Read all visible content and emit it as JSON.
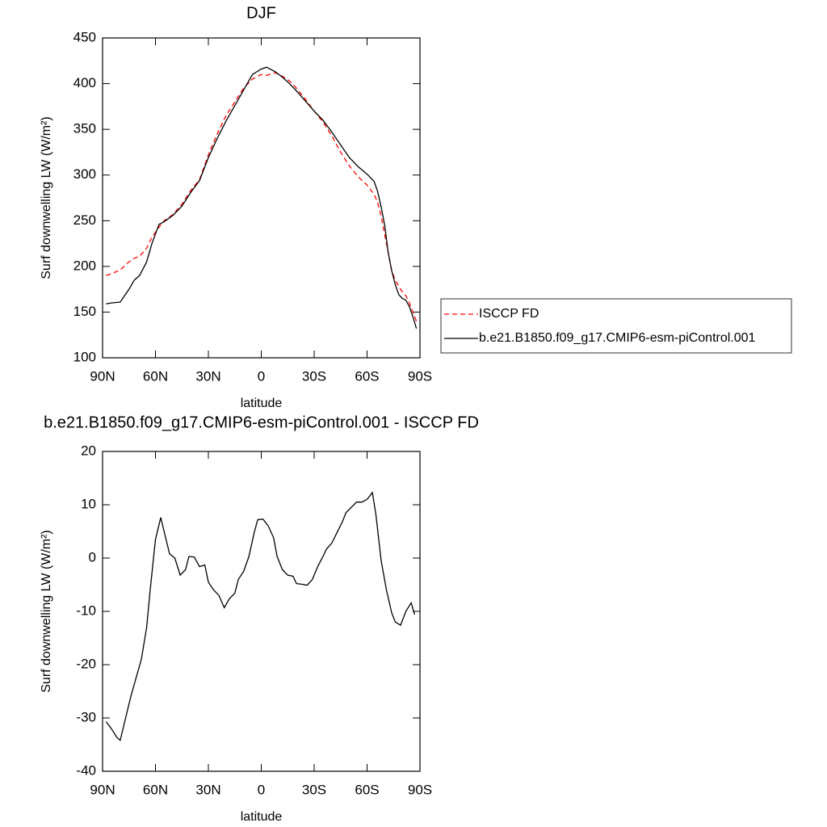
{
  "chart_data": [
    {
      "type": "line",
      "title": "DJF",
      "xlabel": "latitude",
      "ylabel": "Surf downwelling LW (W/m²)",
      "x": [
        88,
        85,
        80,
        75,
        72,
        69,
        65,
        62,
        58,
        55,
        50,
        45,
        40,
        35,
        30,
        25,
        20,
        15,
        10,
        5,
        0,
        -3,
        -8,
        -12,
        -16,
        -20,
        -25,
        -30,
        -35,
        -40,
        -45,
        -50,
        -55,
        -60,
        -64,
        -66,
        -68,
        -70,
        -72,
        -74,
        -76,
        -78,
        -80,
        -82,
        -84,
        -86,
        -88
      ],
      "series": [
        {
          "name": "ISCCP FD",
          "color": "#ff0000",
          "line_style": "dashed",
          "values": [
            190,
            192,
            196,
            205,
            209,
            211,
            220,
            232,
            243,
            250,
            257,
            268,
            283,
            295,
            322,
            345,
            365,
            380,
            395,
            405,
            410,
            409,
            412,
            408,
            403,
            395,
            383,
            370,
            358,
            343,
            325,
            310,
            298,
            289,
            279,
            270,
            255,
            235,
            215,
            195,
            185,
            178,
            172,
            168,
            160,
            150,
            140
          ]
        },
        {
          "name": "b.e21.B1850.f09_g17.CMIP6-esm-piControl.001",
          "color": "#000000",
          "line_style": "solid",
          "values": [
            159,
            160,
            161,
            175,
            185,
            190,
            205,
            225,
            246,
            249,
            256,
            266,
            281,
            294,
            319,
            340,
            359,
            376,
            393,
            410,
            416,
            418,
            413,
            407,
            400,
            392,
            381,
            370,
            360,
            347,
            333,
            319,
            309,
            301,
            293,
            282,
            265,
            245,
            215,
            195,
            180,
            169,
            165,
            163,
            156,
            145,
            132
          ]
        }
      ],
      "xlim": [
        90,
        -90
      ],
      "xticks": [
        {
          "value": 90,
          "label": "90N"
        },
        {
          "value": 60,
          "label": "60N"
        },
        {
          "value": 30,
          "label": "30N"
        },
        0,
        {
          "value": -30,
          "label": "30S"
        },
        {
          "value": -60,
          "label": "60S"
        },
        {
          "value": -90,
          "label": "90S"
        }
      ],
      "ylim": [
        100,
        450
      ],
      "yticks": [
        100,
        150,
        200,
        250,
        300,
        350,
        400,
        450
      ],
      "legend": "outside-right"
    },
    {
      "type": "line",
      "title": "b.e21.B1850.f09_g17.CMIP6-esm-piControl.001 - ISCCP FD",
      "xlabel": "latitude",
      "ylabel": "Surf downwelling LW (W/m²)",
      "x": [
        88,
        85,
        82,
        80,
        74,
        68,
        65,
        63,
        60,
        57,
        54,
        52,
        49,
        46,
        43,
        41,
        38,
        35,
        32,
        30,
        27,
        24,
        21,
        18,
        15,
        13,
        10,
        7,
        4,
        2,
        -1,
        -4,
        -7,
        -9,
        -12,
        -15,
        -18,
        -20,
        -23,
        -26,
        -29,
        -32,
        -35,
        -37,
        -40,
        -43,
        -46,
        -48,
        -51,
        -54,
        -57,
        -60,
        -63,
        -65,
        -68,
        -71,
        -74,
        -76,
        -79,
        -82,
        -85,
        -87
      ],
      "series": [
        {
          "color": "#000000",
          "line_style": "solid",
          "values": [
            -30.7,
            -32,
            -33.6,
            -34.2,
            -26,
            -19,
            -13,
            -6,
            3.5,
            7.6,
            3.5,
            0.8,
            0,
            -3.2,
            -2.2,
            0.3,
            0.2,
            -1.6,
            -1.3,
            -4.5,
            -6,
            -7,
            -9.3,
            -7.6,
            -6.6,
            -4,
            -2.5,
            0.3,
            4.8,
            7.2,
            7.3,
            6,
            3.8,
            0.3,
            -2.2,
            -3.2,
            -3.4,
            -4.8,
            -4.9,
            -5.1,
            -4,
            -1.6,
            0.3,
            1.7,
            2.8,
            4.8,
            6.8,
            8.5,
            9.5,
            10.5,
            10.5,
            11,
            12.3,
            8.2,
            -0.5,
            -6,
            -10.3,
            -12,
            -12.6,
            -10,
            -8.4,
            -10.6
          ]
        }
      ],
      "xlim": [
        90,
        -90
      ],
      "xticks": [
        {
          "value": 90,
          "label": "90N"
        },
        {
          "value": 60,
          "label": "60N"
        },
        {
          "value": 30,
          "label": "30N"
        },
        0,
        {
          "value": -30,
          "label": "30S"
        },
        {
          "value": -60,
          "label": "60S"
        },
        {
          "value": -90,
          "label": "90S"
        }
      ],
      "ylim": [
        -40,
        20
      ],
      "yticks": [
        -40,
        -30,
        -20,
        -10,
        0,
        10,
        20
      ]
    }
  ]
}
